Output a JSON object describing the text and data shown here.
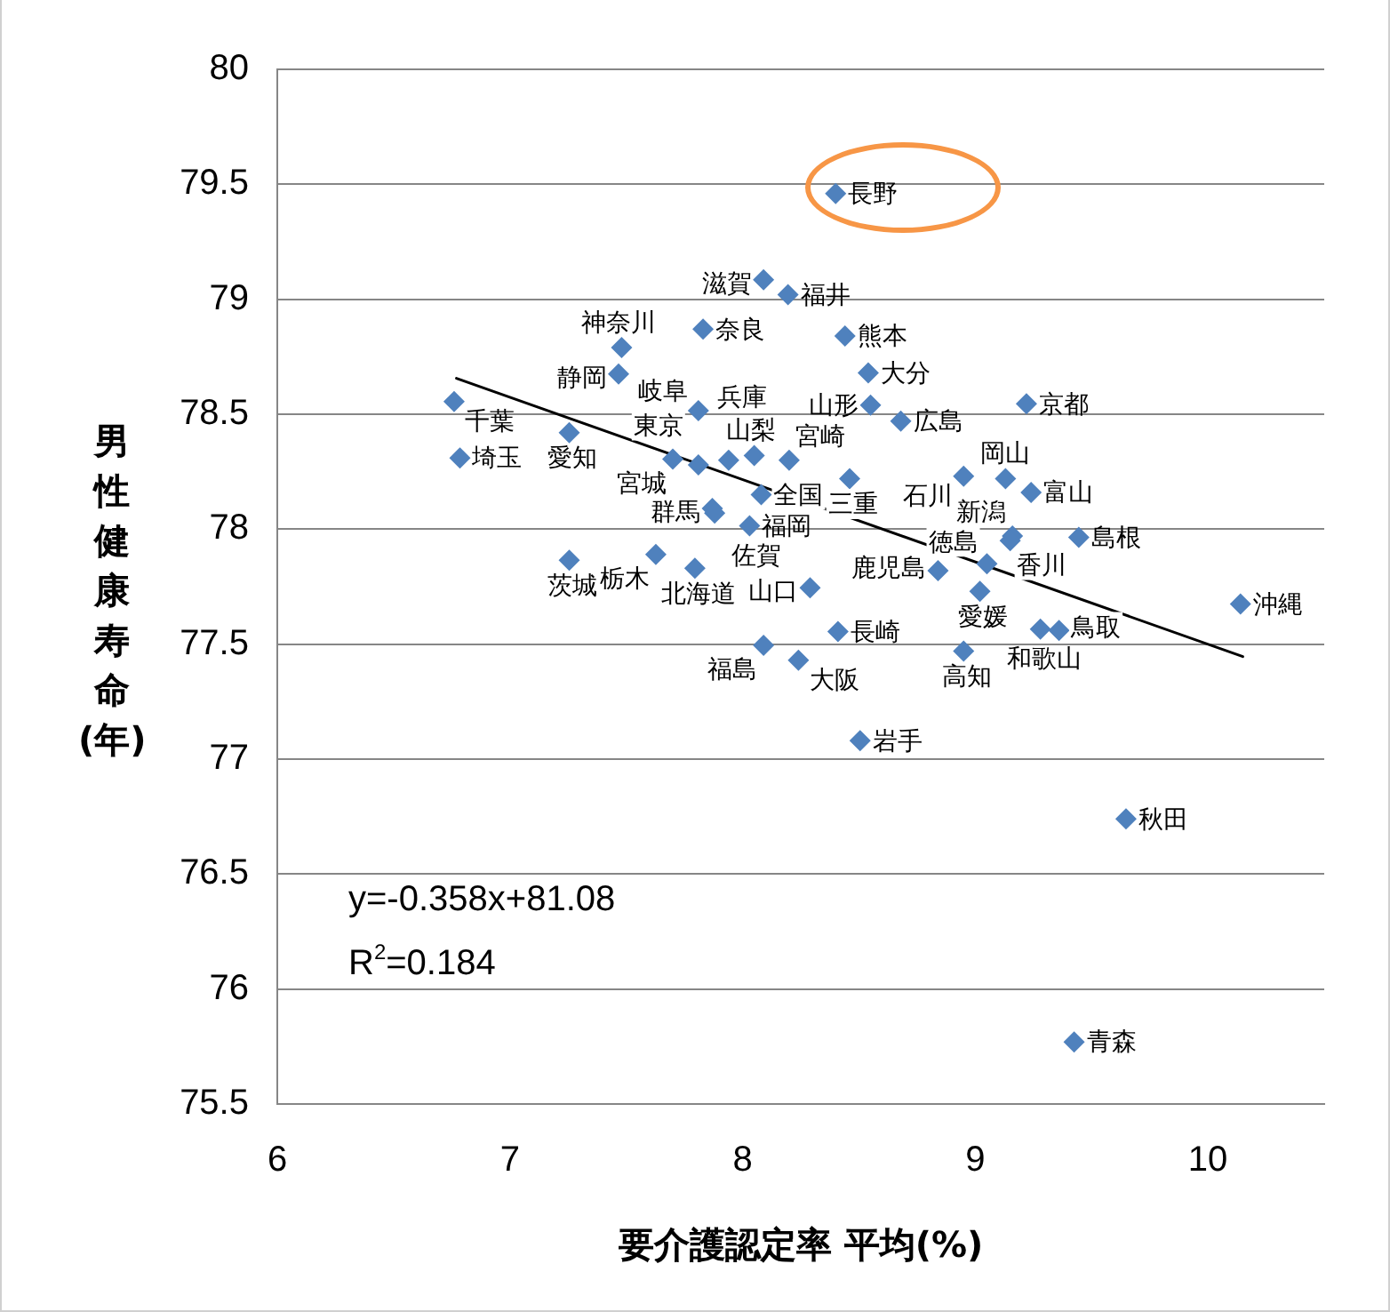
{
  "chart_data": {
    "type": "scatter",
    "xlabel": "要介護認定率 平均(%)",
    "ylabel": "男性健康寿命(年)",
    "xlim": [
      6,
      10.5
    ],
    "xticks": [
      6,
      7,
      8,
      9,
      10
    ],
    "ylim": [
      75.5,
      80
    ],
    "yticks": [
      75.5,
      76,
      76.5,
      77,
      77.5,
      78,
      78.5,
      79,
      79.5,
      80
    ],
    "grid": "y",
    "marker": "diamond",
    "annotations": [
      "y=-0.358x+81.08",
      "R$^{2}$=0.184"
    ],
    "series": [
      {
        "color": "#4f81bd",
        "x": [
          7.795,
          9.425,
          8.505,
          7.7,
          9.648,
          8.55,
          8.09,
          7.255,
          7.627,
          7.87,
          6.785,
          6.76,
          7.81,
          7.48,
          9.16,
          9.24,
          8.95,
          8.195,
          8.05,
          8.4,
          7.81,
          7.467,
          7.255,
          8.46,
          8.09,
          9.22,
          8.24,
          7.94,
          7.83,
          9.28,
          9.36,
          9.445,
          9.13,
          8.68,
          8.29,
          9.05,
          9.15,
          9.02,
          8.95,
          8.03,
          7.88,
          8.41,
          8.44,
          8.54,
          8.2,
          8.84,
          10.14,
          8.08
        ],
        "values": [
          77.83,
          75.77,
          77.08,
          78.305,
          76.74,
          78.54,
          77.495,
          77.865,
          77.89,
          78.09,
          78.31,
          78.555,
          78.28,
          78.79,
          77.97,
          78.16,
          78.23,
          79.02,
          78.32,
          79.46,
          78.515,
          78.675,
          78.42,
          78.22,
          79.085,
          78.545,
          77.43,
          78.3,
          78.87,
          77.565,
          77.56,
          77.965,
          78.22,
          78.47,
          77.745,
          77.85,
          77.95,
          77.73,
          77.47,
          78.015,
          78.07,
          77.555,
          78.84,
          78.68,
          78.3,
          77.82,
          77.675,
          78.15
        ],
        "value_labels": [
          "北海道",
          "青森",
          "岩手",
          "宮城",
          "秋田",
          "山形",
          "福島",
          "茨城",
          "栃木",
          "群馬",
          "埼玉",
          "千葉",
          "東京",
          "神奈川",
          "新潟",
          "富山",
          "石川",
          "福井",
          "山梨",
          "長野",
          "岐阜",
          "静岡",
          "愛知",
          "三重",
          "滋賀",
          "京都",
          "大阪",
          "兵庫",
          "奈良",
          "和歌山",
          "鳥取",
          "島根",
          "岡山",
          "広島",
          "山口",
          "徳島",
          "香川",
          "愛媛",
          "高知",
          "福岡",
          "佐賀",
          "長崎",
          "熊本",
          "大分",
          "宮崎",
          "鹿児島",
          "沖縄",
          "全国"
        ]
      },
      {
        "type": "line",
        "color": "#000000",
        "marker": "none",
        "x": [
          6.77,
          10.15
        ],
        "values": [
          78.656,
          77.446
        ]
      }
    ]
  }
}
